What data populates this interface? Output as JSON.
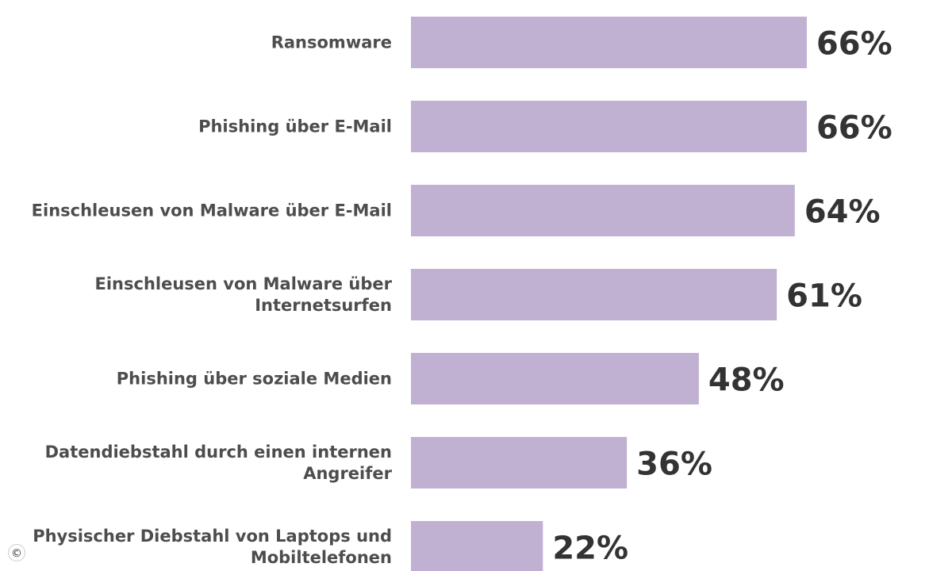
{
  "chart_data": {
    "type": "bar",
    "orientation": "horizontal",
    "categories": [
      "Ransomware",
      "Phishing über E-Mail",
      "Einschleusen von Malware über E-Mail",
      "Einschleusen von Malware über Internetsurfen",
      "Phishing über soziale Medien",
      "Datendiebstahl durch einen internen Angreifer",
      "Physischer Diebstahl von Laptops und Mobiltelefonen"
    ],
    "category_display_lines": [
      [
        "Ransomware"
      ],
      [
        "Phishing über E-Mail"
      ],
      [
        "Einschleusen von Malware über E-Mail"
      ],
      [
        "Einschleusen von Malware über",
        "Internetsurfen"
      ],
      [
        "Phishing über soziale Medien"
      ],
      [
        "Datendiebstahl durch einen internen",
        "Angreifer"
      ],
      [
        "Physischer Diebstahl von Laptops und",
        "Mobiltelefonen"
      ]
    ],
    "values": [
      66,
      66,
      64,
      61,
      48,
      36,
      22
    ],
    "value_labels": [
      "66%",
      "66%",
      "64%",
      "61%",
      "48%",
      "36%",
      "22%"
    ],
    "unit": "%",
    "xlim": [
      0,
      100
    ],
    "grid": false,
    "legend": "none",
    "bar_color": "#c0b1d2",
    "label_color": "#4d4d4d",
    "value_color": "#333333"
  },
  "copyright_symbol": "©"
}
